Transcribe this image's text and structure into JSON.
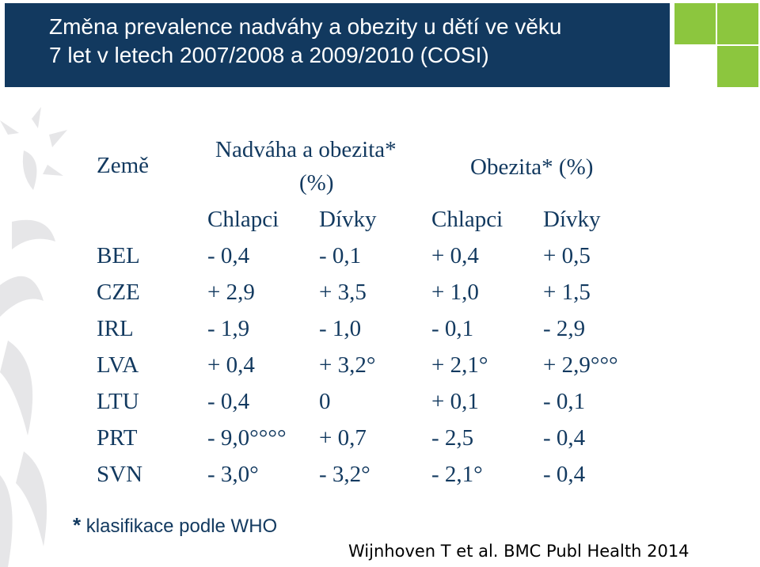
{
  "header": {
    "title_line1": "Změna prevalence nadváhy a obezity u dětí ve věku",
    "title_line2": "7 let v letech  2007/2008 a 2009/2010 (COSI)"
  },
  "table": {
    "country_header": "Země",
    "group1_header_line1": "Nadváha a obezita*",
    "group1_header_line2": "(%)",
    "group2_header": "Obezita* (%)",
    "sub_headers": [
      "Chlapci",
      "Dívky",
      "Chlapci",
      "Dívky"
    ],
    "rows": [
      {
        "country": "BEL",
        "values": [
          "- 0,4",
          "- 0,1",
          "+ 0,4",
          "+ 0,5"
        ]
      },
      {
        "country": "CZE",
        "values": [
          "+ 2,9",
          "+ 3,5",
          "+ 1,0",
          "+ 1,5"
        ]
      },
      {
        "country": "IRL",
        "values": [
          "- 1,9",
          "- 1,0",
          "- 0,1",
          "- 2,9"
        ]
      },
      {
        "country": "LVA",
        "values": [
          "+ 0,4",
          "+ 3,2°",
          "+ 2,1°",
          "+ 2,9°°°"
        ]
      },
      {
        "country": "LTU",
        "values": [
          "- 0,4",
          "0",
          "+ 0,1",
          "- 0,1"
        ]
      },
      {
        "country": "PRT",
        "values": [
          "- 9,0°°°°",
          "+ 0,7",
          "- 2,5",
          "- 0,4"
        ]
      },
      {
        "country": "SVN",
        "values": [
          "- 3,0°",
          "- 3,2°",
          "- 2,1°",
          "- 0,4"
        ]
      }
    ]
  },
  "footnote": {
    "star": "*",
    "text": " klasifikace podle WHO"
  },
  "citation": "Wijnhoven T et al. BMC Publ Health 2014",
  "colors": {
    "title_bg": "#12395f",
    "accent_green": "#8cc63e",
    "text_blue": "#12395f"
  }
}
